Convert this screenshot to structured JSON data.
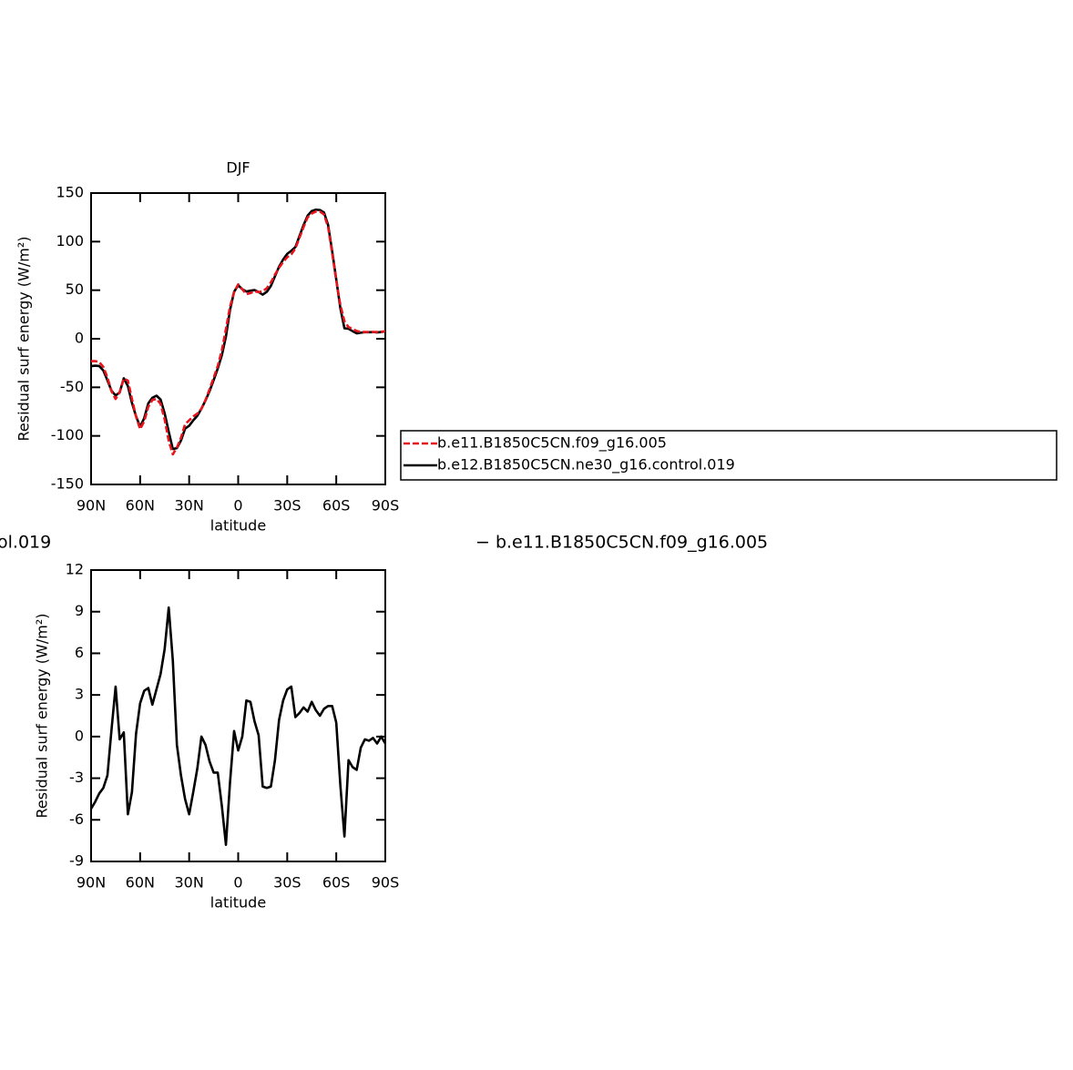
{
  "chart_data": [
    {
      "type": "line",
      "title": "DJF",
      "xlabel": "latitude",
      "ylabel": "Residual surf energy (W/m²)",
      "x": [
        90,
        87.5,
        85,
        82.5,
        80,
        77.5,
        75,
        72.5,
        70,
        67.5,
        65,
        62.5,
        60,
        57.5,
        55,
        52.5,
        50,
        47.5,
        45,
        42.5,
        40,
        37.5,
        35,
        32.5,
        30,
        27.5,
        25,
        22.5,
        20,
        17.5,
        15,
        12.5,
        10,
        7.5,
        5,
        2.5,
        0,
        -2.5,
        -5,
        -7.5,
        -10,
        -12.5,
        -15,
        -17.5,
        -20,
        -22.5,
        -25,
        -27.5,
        -30,
        -32.5,
        -35,
        -37.5,
        -40,
        -42.5,
        -45,
        -47.5,
        -50,
        -52.5,
        -55,
        -57.5,
        -60,
        -62.5,
        -65,
        -67.5,
        -70,
        -72.5,
        -75,
        -77.5,
        -80,
        -82.5,
        -85,
        -87.5,
        -90
      ],
      "series": [
        {
          "name": "b.e11.B1850C5CN.f09_g16.005",
          "color": "#e8141c",
          "dashed": true,
          "values": [
            -23,
            -23,
            -24,
            -29,
            -40,
            -54,
            -62,
            -55,
            -41,
            -43,
            -62,
            -80,
            -93,
            -85,
            -70,
            -63,
            -62,
            -67,
            -83,
            -105,
            -119,
            -112,
            -102,
            -88,
            -84,
            -80,
            -77,
            -72,
            -63,
            -52,
            -40,
            -28,
            -12,
            10,
            33,
            48,
            56,
            51,
            46,
            47,
            49,
            48,
            49,
            52,
            58,
            66,
            73,
            79,
            84,
            87,
            93,
            104,
            115,
            125,
            129,
            131,
            131,
            128,
            115,
            88,
            60,
            35,
            18,
            12,
            10,
            8,
            7,
            7,
            7,
            7,
            7,
            7,
            8
          ]
        },
        {
          "name": "b.e12.B1850C5CN.ne30_g16.control.019",
          "color": "#000000",
          "dashed": false,
          "values": [
            -28.2,
            -27.7,
            -28.1,
            -32.7,
            -42.8,
            -53.5,
            -58.4,
            -55.2,
            -40.7,
            -48.6,
            -66,
            -79.8,
            -90.6,
            -81.7,
            -66.5,
            -60.7,
            -58.6,
            -62.5,
            -76.7,
            -95.7,
            -113.5,
            -112.6,
            -104.8,
            -92.5,
            -89.6,
            -84,
            -79.3,
            -72,
            -63.6,
            -53.8,
            -42.6,
            -30.6,
            -17,
            2.2,
            29.7,
            48.4,
            55,
            51,
            48.6,
            49.5,
            50.1,
            48.1,
            45.4,
            48.3,
            54.4,
            64.3,
            74.2,
            81.6,
            87.4,
            90.6,
            94.4,
            105.7,
            117.1,
            126.8,
            131.5,
            132.9,
            132.5,
            130,
            117.2,
            90.2,
            61,
            31.5,
            10.8,
            10.3,
            7.8,
            5.6,
            6.2,
            6.8,
            6.7,
            6.9,
            6.5,
            7,
            7.5
          ]
        }
      ],
      "xlim": [
        90,
        -90
      ],
      "xticks": [
        {
          "value": 90,
          "label": "90N"
        },
        {
          "value": 60,
          "label": "60N"
        },
        {
          "value": 30,
          "label": "30N"
        },
        0,
        {
          "value": -30,
          "label": "30S"
        },
        {
          "value": -60,
          "label": "60S"
        },
        {
          "value": -90,
          "label": "90S"
        }
      ],
      "ylim": [
        -150,
        150
      ],
      "yticks": [
        150,
        100,
        50,
        0,
        -50,
        -100,
        -150
      ],
      "legend": "right"
    },
    {
      "type": "line",
      "title_left": "ol.019",
      "title_right": "− b.e11.B1850C5CN.f09_g16.005",
      "xlabel": "latitude",
      "ylabel": "Residual surf energy (W/m²)",
      "x": [
        90,
        87.5,
        85,
        82.5,
        80,
        77.5,
        75,
        72.5,
        70,
        67.5,
        65,
        62.5,
        60,
        57.5,
        55,
        52.5,
        50,
        47.5,
        45,
        42.5,
        40,
        37.5,
        35,
        32.5,
        30,
        27.5,
        25,
        22.5,
        20,
        17.5,
        15,
        12.5,
        10,
        7.5,
        5,
        2.5,
        0,
        -2.5,
        -5,
        -7.5,
        -10,
        -12.5,
        -15,
        -17.5,
        -20,
        -22.5,
        -25,
        -27.5,
        -30,
        -32.5,
        -35,
        -37.5,
        -40,
        -42.5,
        -45,
        -47.5,
        -50,
        -52.5,
        -55,
        -57.5,
        -60,
        -62.5,
        -65,
        -67.5,
        -70,
        -72.5,
        -75,
        -77.5,
        -80,
        -82.5,
        -85,
        -87.5,
        -90
      ],
      "color": "#000000",
      "values": [
        -5.2,
        -4.7,
        -4.1,
        -3.7,
        -2.8,
        0.5,
        3.6,
        -0.2,
        0.3,
        -5.6,
        -4,
        0.2,
        2.4,
        3.3,
        3.5,
        2.3,
        3.4,
        4.5,
        6.3,
        9.3,
        5.5,
        -0.6,
        -2.8,
        -4.5,
        -5.6,
        -4,
        -2.3,
        0,
        -0.6,
        -1.8,
        -2.6,
        -2.6,
        -5,
        -7.8,
        -3.3,
        0.4,
        -1,
        0,
        2.6,
        2.5,
        1.1,
        0.1,
        -3.6,
        -3.7,
        -3.6,
        -1.7,
        1.2,
        2.6,
        3.4,
        3.6,
        1.4,
        1.7,
        2.1,
        1.8,
        2.5,
        1.9,
        1.5,
        2,
        2.2,
        2.2,
        1,
        -3.5,
        -7.2,
        -1.7,
        -2.2,
        -2.4,
        -0.8,
        -0.2,
        -0.3,
        -0.1,
        -0.5,
        0,
        -0.5
      ],
      "xlim": [
        90,
        -90
      ],
      "xticks": [
        {
          "value": 90,
          "label": "90N"
        },
        {
          "value": 60,
          "label": "60N"
        },
        {
          "value": 30,
          "label": "30N"
        },
        0,
        {
          "value": -30,
          "label": "30S"
        },
        {
          "value": -60,
          "label": "60S"
        },
        {
          "value": -90,
          "label": "90S"
        }
      ],
      "ylim": [
        -9,
        12
      ],
      "yticks": [
        12,
        9,
        6,
        3,
        0,
        -3,
        -6,
        -9
      ]
    }
  ]
}
